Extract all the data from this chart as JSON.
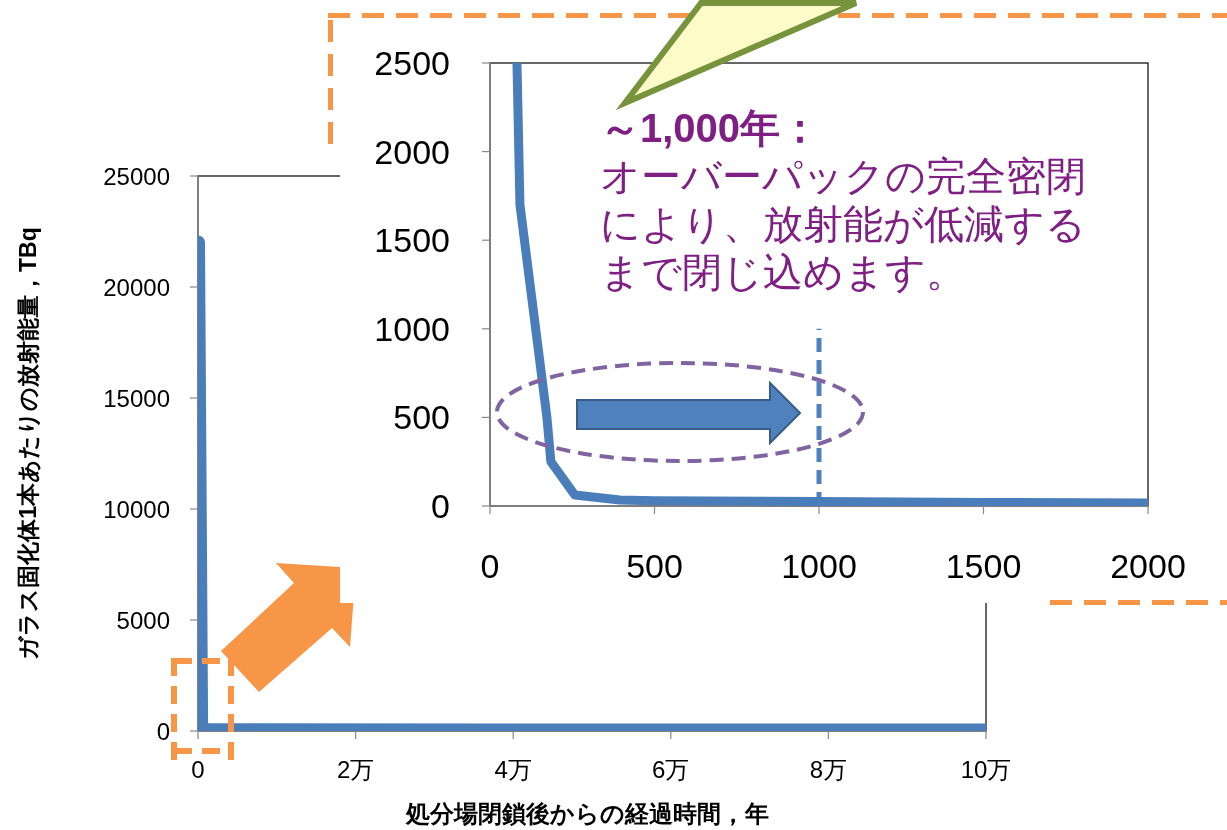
{
  "chart_data": [
    {
      "type": "line",
      "xlabel": "処分場閉鎖後からの経過時間，年",
      "ylabel": "ガラス固化体1本あたりの放射能量，TBq",
      "x": [
        0,
        0.04,
        10
      ],
      "series": [
        {
          "color": "#4a7ebb",
          "values": [
            22000,
            30,
            20
          ]
        }
      ],
      "xlim": [
        0,
        10
      ],
      "ylim": [
        0,
        25000
      ],
      "xticks": [
        0,
        {
          "value": 2,
          "label": "2万"
        },
        {
          "value": 4,
          "label": "4万"
        },
        {
          "value": 6,
          "label": "6万"
        },
        {
          "value": 8,
          "label": "8万"
        },
        {
          "value": 10,
          "label": "10万"
        }
      ],
      "yticks": [
        0,
        5000,
        10000,
        15000,
        20000,
        25000
      ]
    },
    {
      "type": "line",
      "x": [
        82,
        91,
        173,
        185,
        258,
        395,
        500,
        1000,
        1500,
        2000
      ],
      "series": [
        {
          "color": "#4a7ebb",
          "values": [
            2500,
            1700,
            500,
            250,
            62,
            34,
            30,
            25,
            20,
            17
          ]
        }
      ],
      "xlim": [
        0,
        2000
      ],
      "ylim": [
        0,
        2500
      ],
      "xticks": [
        0,
        500,
        1000,
        1500,
        2000
      ],
      "yticks": [
        0,
        500,
        1000,
        1500,
        2000,
        2500
      ],
      "ref_lines": [
        {
          "axis": "x",
          "value": 1000,
          "color": "#4f81bd",
          "line_style": "dashed"
        }
      ],
      "annotations": [
        "～1,000年：",
        "オーバーパックの完全密閉により、放射能が低減するまで閉じ込めます。"
      ]
    }
  ]
}
